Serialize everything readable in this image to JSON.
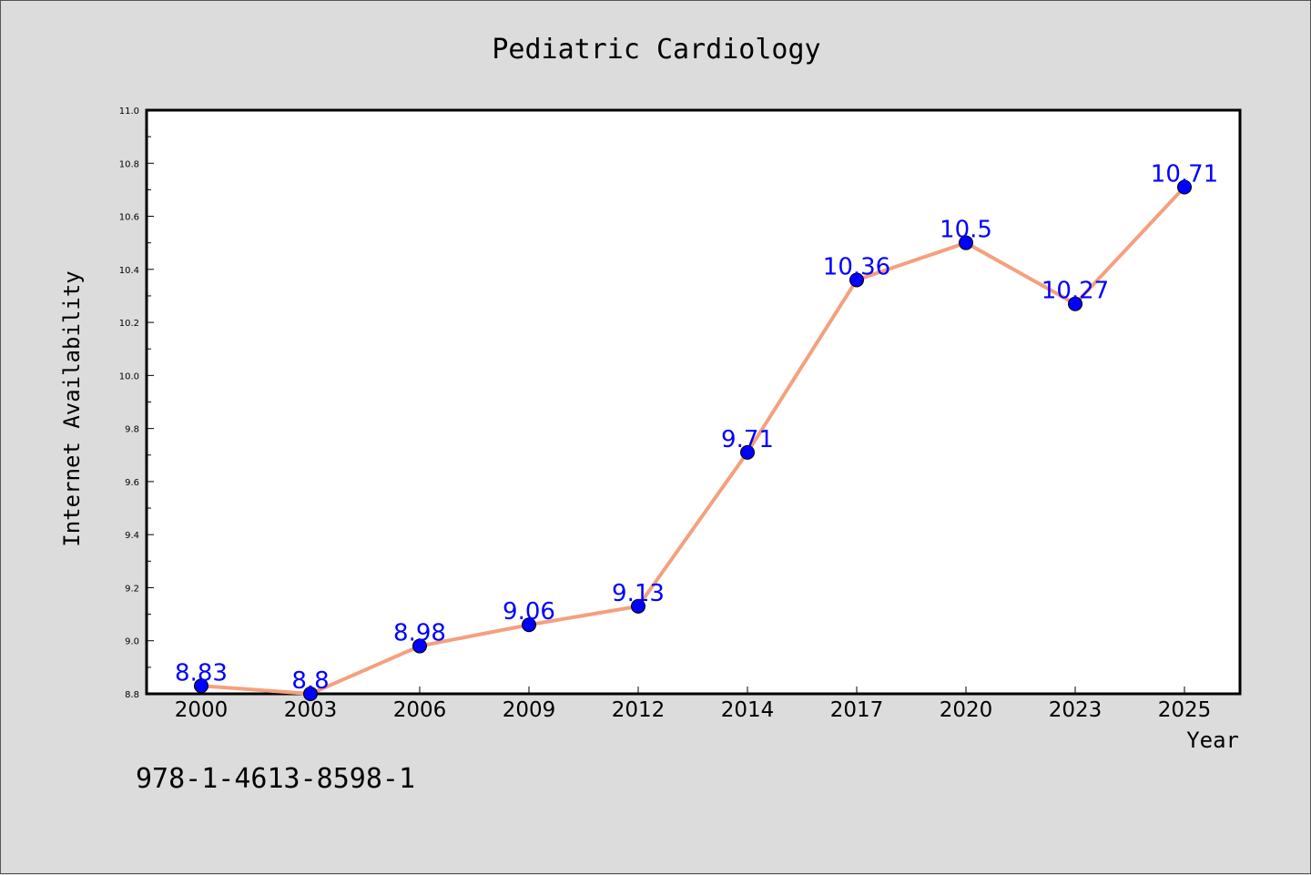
{
  "chart_data": {
    "type": "line",
    "title": "Pediatric Cardiology",
    "xlabel": "Year",
    "ylabel": "Internet Availability",
    "categories": [
      "2000",
      "2003",
      "2006",
      "2009",
      "2012",
      "2014",
      "2017",
      "2020",
      "2023",
      "2025"
    ],
    "series": [
      {
        "values": [
          8.83,
          8.8,
          8.98,
          9.06,
          9.13,
          9.71,
          10.36,
          10.5,
          10.27,
          10.71
        ],
        "data_labels": [
          "8.83",
          "8.8",
          "8.98",
          "9.06",
          "9.13",
          "9.71",
          "10.36",
          "10.5",
          "10.27",
          "10.71"
        ],
        "line_color": "#f4a07e",
        "marker_color": "#0000ff"
      }
    ],
    "ylim": [
      8.8,
      11.0
    ],
    "y_major_ticks": [
      "8.8",
      "9.0",
      "9.2",
      "9.4",
      "9.6",
      "9.8",
      "10.0",
      "10.2",
      "10.4",
      "10.6",
      "10.8",
      "11.0"
    ],
    "grid": false,
    "legend": "none"
  },
  "footer": {
    "isbn": "978-1-4613-8598-1"
  },
  "colors": {
    "background": "#dcdcdc",
    "plot_background": "#ffffff",
    "data_label": "#0000ff"
  }
}
